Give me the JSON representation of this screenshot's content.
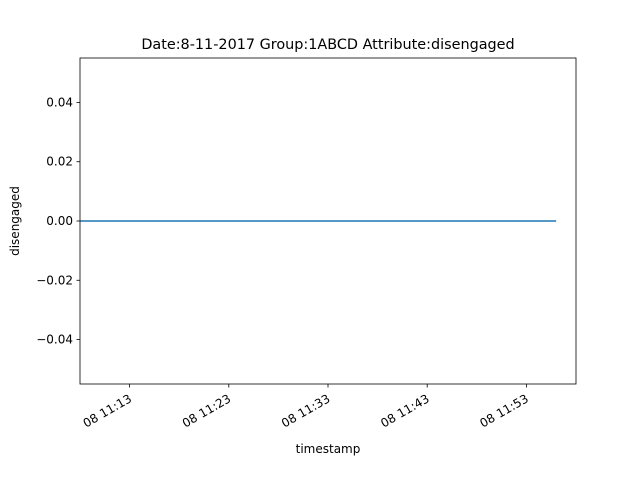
{
  "chart_data": {
    "type": "line",
    "title": "Date:8-11-2017  Group:1ABCD Attribute:disengaged",
    "xlabel": "timestamp",
    "ylabel": "disengaged",
    "x_ticks": [
      "08 11:13",
      "08 11:23",
      "08 11:33",
      "08 11:43",
      "08 11:53"
    ],
    "y_ticks": [
      "0.04",
      "0.02",
      "0.00",
      "−0.02",
      "−0.04"
    ],
    "y_tick_values": [
      0.04,
      0.02,
      0.0,
      -0.02,
      -0.04
    ],
    "ylim": [
      -0.055,
      0.055
    ],
    "xlim": [
      "08 11:08",
      "08 11:58"
    ],
    "series": [
      {
        "color": "#1f77b4",
        "x": [
          "08 11:08",
          "08 11:56"
        ],
        "y": [
          0,
          0
        ]
      }
    ],
    "grid": false,
    "legend": "none"
  }
}
